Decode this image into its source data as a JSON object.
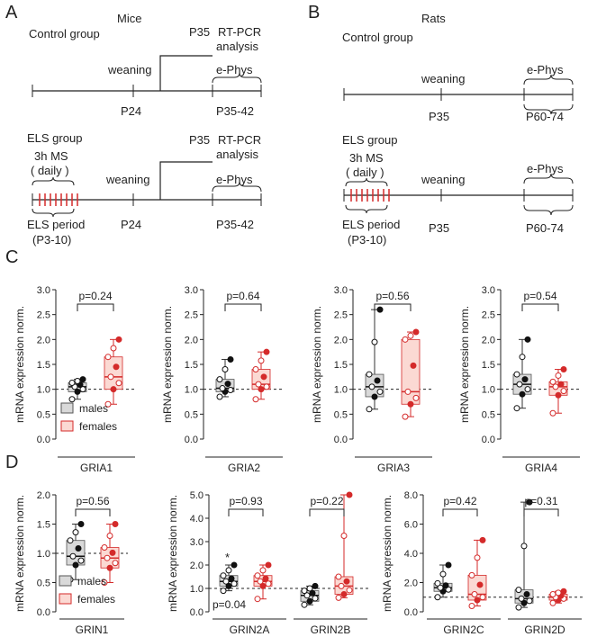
{
  "colors": {
    "male_fill": "#d9d9d9",
    "female_fill": "#fbd9d3",
    "male_dot": "#111111",
    "female_dot": "#d42a2a",
    "tick_red": "#d42a2a"
  },
  "panelA": {
    "letter": "A",
    "species": "Mice",
    "control": {
      "title": "Control group",
      "weaning": "weaning",
      "p24": "P24",
      "p35": "P35",
      "rtpcr1": "RT-PCR",
      "rtpcr2": "analysis",
      "ephys": "e-Phys",
      "range": "P35-42"
    },
    "els": {
      "title": "ELS group",
      "ms1": "3h MS",
      "ms2": "( daily )",
      "weaning": "weaning",
      "p24": "P24",
      "p35": "P35",
      "rtpcr1": "RT-PCR",
      "rtpcr2": "analysis",
      "ephys": "e-Phys",
      "range": "P35-42",
      "period1": "ELS period",
      "period2": "(P3-10)"
    }
  },
  "panelB": {
    "letter": "B",
    "species": "Rats",
    "control": {
      "title": "Control group",
      "weaning": "weaning",
      "p35": "P35",
      "ephys": "e-Phys",
      "range": "P60-74"
    },
    "els": {
      "title": "ELS group",
      "ms1": "3h MS",
      "ms2": "( daily )",
      "weaning": "weaning",
      "p35": "P35",
      "ephys": "e-Phys",
      "range": "P60-74",
      "period1": "ELS period",
      "period2": "(P3-10)"
    }
  },
  "panelC": {
    "letter": "C",
    "ylabel": "mRNA expression norm.",
    "legend": {
      "males": "males",
      "females": "females"
    },
    "charts": [
      {
        "gene": "GRIA1",
        "p": "p=0.24",
        "male": {
          "min": 0.8,
          "q1": 0.95,
          "med": 1.05,
          "q3": 1.13,
          "max": 1.2
        },
        "female": {
          "min": 0.7,
          "q1": 1.0,
          "med": 1.25,
          "q3": 1.65,
          "max": 2.0
        }
      },
      {
        "gene": "GRIA2",
        "p": "p=0.64",
        "male": {
          "min": 0.85,
          "q1": 0.95,
          "med": 1.02,
          "q3": 1.2,
          "max": 1.6
        },
        "female": {
          "min": 0.8,
          "q1": 1.0,
          "med": 1.1,
          "q3": 1.4,
          "max": 1.75
        }
      },
      {
        "gene": "GRIA3",
        "p": "p=0.56",
        "male": {
          "min": 0.6,
          "q1": 0.85,
          "med": 1.05,
          "q3": 1.3,
          "max": 2.6
        },
        "female": {
          "min": 0.45,
          "q1": 0.7,
          "med": 0.95,
          "q3": 2.0,
          "max": 2.15
        }
      },
      {
        "gene": "GRIA4",
        "p": "p=0.54",
        "male": {
          "min": 0.62,
          "q1": 0.9,
          "med": 1.1,
          "q3": 1.3,
          "max": 2.0
        },
        "female": {
          "min": 0.52,
          "q1": 0.88,
          "med": 1.05,
          "q3": 1.15,
          "max": 1.4
        }
      }
    ]
  },
  "panelD": {
    "letter": "D",
    "ylabel": "mRNA expression norm.",
    "legend": {
      "males": "males",
      "females": "females"
    },
    "star": "*",
    "p_extra": "p=0.04",
    "charts": [
      {
        "genes": [
          {
            "name": "GRIN1",
            "p": "p=0.56",
            "male": {
              "min": 0.55,
              "q1": 0.8,
              "med": 0.95,
              "q3": 1.22,
              "max": 1.5
            },
            "female": {
              "min": 0.5,
              "q1": 0.75,
              "med": 0.92,
              "q3": 1.1,
              "max": 1.5
            }
          }
        ]
      },
      {
        "genes": [
          {
            "name": "GRIN2A",
            "p": "p=0.93",
            "male": {
              "min": 0.9,
              "q1": 1.1,
              "med": 1.3,
              "q3": 1.55,
              "max": 2.0
            },
            "female": {
              "min": 0.55,
              "q1": 1.1,
              "med": 1.3,
              "q3": 1.55,
              "max": 2.0
            }
          },
          {
            "name": "GRIN2B",
            "p": "p=0.22",
            "male": {
              "min": 0.3,
              "q1": 0.45,
              "med": 0.7,
              "q3": 0.9,
              "max": 1.1
            },
            "female": {
              "min": 0.6,
              "q1": 0.75,
              "med": 1.1,
              "q3": 1.5,
              "max": 5.0
            }
          }
        ]
      },
      {
        "genes": [
          {
            "name": "GRIN2C",
            "p": "p=0.42",
            "male": {
              "min": 1.0,
              "q1": 1.4,
              "med": 1.65,
              "q3": 1.95,
              "max": 3.2
            },
            "female": {
              "min": 0.4,
              "q1": 0.8,
              "med": 1.2,
              "q3": 2.5,
              "max": 4.9
            }
          },
          {
            "name": "GRIN2D",
            "p": "p=0.31",
            "male": {
              "min": 0.3,
              "q1": 0.6,
              "med": 0.9,
              "q3": 1.5,
              "max": 7.5
            },
            "female": {
              "min": 0.6,
              "q1": 0.8,
              "med": 1.0,
              "q3": 1.2,
              "max": 1.4
            }
          }
        ]
      }
    ]
  },
  "chart_data": [
    {
      "type": "box",
      "title": "",
      "xlabel": "GRIA1",
      "ylabel": "mRNA expression norm.",
      "ylim": [
        0,
        3.0
      ],
      "series": [
        {
          "name": "males"
        },
        {
          "name": "females"
        }
      ],
      "annotation": "p=0.24"
    },
    {
      "type": "box",
      "title": "",
      "xlabel": "GRIA2",
      "ylabel": "mRNA expression norm.",
      "ylim": [
        0,
        3.0
      ],
      "annotation": "p=0.64"
    },
    {
      "type": "box",
      "title": "",
      "xlabel": "GRIA3",
      "ylabel": "mRNA expression norm.",
      "ylim": [
        0,
        3.0
      ],
      "annotation": "p=0.56"
    },
    {
      "type": "box",
      "title": "",
      "xlabel": "GRIA4",
      "ylabel": "mRNA expression norm.",
      "ylim": [
        0,
        3.0
      ],
      "annotation": "p=0.54"
    },
    {
      "type": "box",
      "title": "",
      "xlabel": "GRIN1",
      "ylabel": "mRNA expression norm.",
      "ylim": [
        0,
        2.0
      ],
      "annotation": "p=0.56"
    },
    {
      "type": "box",
      "title": "",
      "categories": [
        "GRIN2A",
        "GRIN2B"
      ],
      "ylabel": "mRNA expression norm.",
      "ylim": [
        0,
        5.0
      ],
      "annotation": [
        "p=0.93",
        "p=0.22",
        "p=0.04"
      ]
    },
    {
      "type": "box",
      "title": "",
      "categories": [
        "GRIN2C",
        "GRIN2D"
      ],
      "ylabel": "mRNA expression norm.",
      "ylim": [
        0,
        8.0
      ],
      "annotation": [
        "p=0.42",
        "p=0.31"
      ]
    }
  ]
}
